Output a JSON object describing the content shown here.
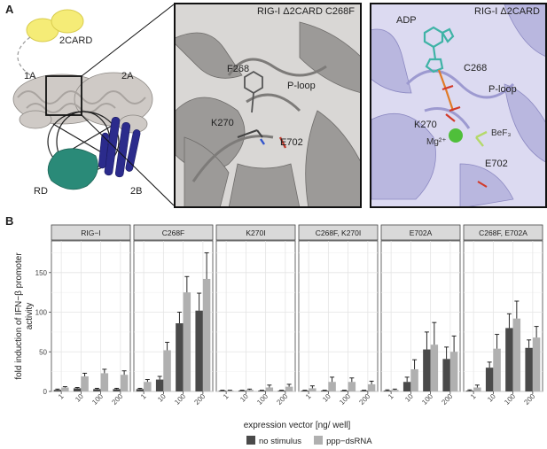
{
  "panels": {
    "a": {
      "letter": "A",
      "labels": {
        "cards": "2CARD",
        "hel1": "1A",
        "hel2": "2A",
        "rd": "RD",
        "hel3": "2B"
      },
      "inset1": {
        "title": "RIG-I Δ2CARD C268F",
        "residues": {
          "f268": "F268",
          "ploop": "P-loop",
          "k270": "K270",
          "e702": "E702"
        }
      },
      "inset2": {
        "title": "RIG-I Δ2CARD",
        "residues": {
          "adp": "ADP",
          "c268": "C268",
          "ploop": "P-loop",
          "k270": "K270",
          "mg": "Mg²⁺",
          "bef": "BeF₃",
          "e702": "E702"
        }
      }
    },
    "b": {
      "letter": "B"
    }
  },
  "colors": {
    "no_stimulus": "#4a4a4a",
    "dsrna": "#b0b0b0",
    "helicase_1": "#cfcac6",
    "helicase_2b": "#2b2b8c",
    "rd": "#2a8a78",
    "card": "#f5ec77",
    "inset1_bg": "#9c9a98",
    "inset2_bg": "#b9b7df"
  },
  "chart_data": {
    "type": "bar",
    "ylabel": "fold induction of IFN−β promoter activity",
    "xlabel": "expression vector [ng/ well]",
    "ylim": [
      0,
      190
    ],
    "yticks": [
      0,
      50,
      100,
      150
    ],
    "categories": [
      "1",
      "10",
      "100",
      "200"
    ],
    "legend": {
      "position": "bottom",
      "entries": [
        "no stimulus",
        "ppp−dsRNA"
      ]
    },
    "facets": [
      {
        "name": "RIG−I",
        "series": [
          {
            "name": "no stimulus",
            "values": [
              2,
              4,
              3,
              3
            ],
            "err": [
              1,
              1,
              1,
              1
            ]
          },
          {
            "name": "ppp−dsRNA",
            "values": [
              5,
              19,
              23,
              21
            ],
            "err": [
              1,
              4,
              5,
              5
            ]
          }
        ]
      },
      {
        "name": "C268F",
        "series": [
          {
            "name": "no stimulus",
            "values": [
              3,
              15,
              86,
              102
            ],
            "err": [
              1,
              4,
              14,
              22
            ]
          },
          {
            "name": "ppp−dsRNA",
            "values": [
              12,
              52,
              125,
              142
            ],
            "err": [
              3,
              10,
              20,
              33
            ]
          }
        ]
      },
      {
        "name": "K270I",
        "series": [
          {
            "name": "no stimulus",
            "values": [
              1,
              1,
              1,
              1
            ],
            "err": [
              0.5,
              0.5,
              0.5,
              0.5
            ]
          },
          {
            "name": "ppp−dsRNA",
            "values": [
              1,
              2,
              5,
              6
            ],
            "err": [
              0.5,
              1,
              3,
              3
            ]
          }
        ]
      },
      {
        "name": "C268F, K270I",
        "series": [
          {
            "name": "no stimulus",
            "values": [
              1,
              1,
              1,
              1
            ],
            "err": [
              0.5,
              0.5,
              0.5,
              0.5
            ]
          },
          {
            "name": "ppp−dsRNA",
            "values": [
              4,
              12,
              12,
              9
            ],
            "err": [
              3,
              6,
              5,
              4
            ]
          }
        ]
      },
      {
        "name": "E702A",
        "series": [
          {
            "name": "no stimulus",
            "values": [
              1,
              12,
              53,
              41
            ],
            "err": [
              1,
              6,
              22,
              15
            ]
          },
          {
            "name": "ppp−dsRNA",
            "values": [
              2,
              28,
              59,
              50
            ],
            "err": [
              1,
              12,
              28,
              20
            ]
          }
        ]
      },
      {
        "name": "C268F, E702A",
        "series": [
          {
            "name": "no stimulus",
            "values": [
              1,
              30,
              80,
              55
            ],
            "err": [
              1,
              7,
              18,
              10
            ]
          },
          {
            "name": "ppp−dsRNA",
            "values": [
              5,
              54,
              92,
              68
            ],
            "err": [
              3,
              18,
              22,
              14
            ]
          }
        ]
      }
    ]
  }
}
